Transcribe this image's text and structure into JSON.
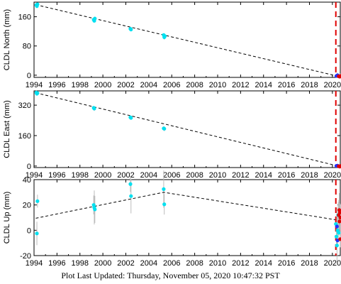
{
  "chart_data": [
    {
      "type": "scatter",
      "ylabel": "CLDL North (mm)",
      "xlim": [
        1994,
        2020.75
      ],
      "ylim": [
        -6,
        200
      ],
      "yticks": [
        0,
        80,
        160
      ],
      "xticks": [
        1994,
        1996,
        1998,
        2000,
        2002,
        2004,
        2006,
        2008,
        2010,
        2012,
        2014,
        2016,
        2018,
        2020
      ],
      "trend": {
        "x": [
          1994.15,
          2020.5
        ],
        "y": [
          193,
          -3
        ]
      },
      "event_line_x": 2020.3,
      "series": [
        {
          "color": "#00e0f0",
          "points": [
            [
              1994.2,
              192
            ],
            [
              1994.25,
              189
            ],
            [
              1994.3,
              194
            ],
            [
              1999.2,
              152
            ],
            [
              1999.25,
              149
            ],
            [
              1999.3,
              155
            ],
            [
              2002.4,
              127
            ],
            [
              2002.45,
              125
            ],
            [
              2005.3,
              110
            ],
            [
              2005.35,
              104
            ],
            [
              2005.4,
              107
            ]
          ]
        },
        {
          "color": "#2233ff",
          "points": [
            [
              2020.35,
              -2
            ],
            [
              2020.45,
              0
            ]
          ]
        },
        {
          "color": "#dd0000",
          "points": [
            [
              2020.55,
              -3
            ],
            [
              2020.65,
              -4
            ],
            [
              2020.7,
              -2
            ]
          ]
        }
      ]
    },
    {
      "type": "scatter",
      "ylabel": "CLDL East (mm)",
      "xlim": [
        1994,
        2020.75
      ],
      "ylim": [
        -8,
        395
      ],
      "yticks": [
        0,
        160,
        320
      ],
      "xticks": [
        1994,
        1996,
        1998,
        2000,
        2002,
        2004,
        2006,
        2008,
        2010,
        2012,
        2014,
        2016,
        2018,
        2020
      ],
      "trend": {
        "x": [
          1994.15,
          2020.5
        ],
        "y": [
          385,
          0
        ]
      },
      "event_line_x": 2020.3,
      "series": [
        {
          "color": "#00e0f0",
          "points": [
            [
              1994.2,
              386
            ],
            [
              1994.25,
              380
            ],
            [
              1994.3,
              383
            ],
            [
              1999.2,
              306
            ],
            [
              1999.25,
              302
            ],
            [
              2002.4,
              256
            ],
            [
              2002.45,
              253
            ],
            [
              2005.3,
              198
            ],
            [
              2005.35,
              196
            ]
          ]
        },
        {
          "color": "#2233ff",
          "points": [
            [
              2020.35,
              1
            ],
            [
              2020.45,
              2
            ]
          ]
        },
        {
          "color": "#dd0000",
          "points": [
            [
              2020.55,
              -1
            ],
            [
              2020.65,
              -3
            ],
            [
              2020.7,
              0
            ]
          ]
        }
      ]
    },
    {
      "type": "scatter",
      "ylabel": "CLDL Up (mm)",
      "xlim": [
        1994,
        2020.75
      ],
      "ylim": [
        -20,
        40
      ],
      "yticks": [
        -20,
        0,
        20,
        40
      ],
      "xticks": [
        1994,
        1996,
        1998,
        2000,
        2002,
        2004,
        2006,
        2008,
        2010,
        2012,
        2014,
        2016,
        2018,
        2020
      ],
      "xticklabels": [
        "1994",
        "1996",
        "1998",
        "2000",
        "2002",
        "2004",
        "2006",
        "2008",
        "2010",
        "2012",
        "2014",
        "2016",
        "2018",
        "2020"
      ],
      "trend": {
        "x": [
          1994.15,
          2005.3,
          2020.5
        ],
        "y": [
          9.5,
          30,
          8
        ]
      },
      "event_line_x": 2020.3,
      "series": [
        {
          "color": "#00e0f0",
          "points": [
            [
              1994.3,
              23
            ],
            [
              1994.25,
              -2.5
            ],
            [
              1999.2,
              20
            ],
            [
              1999.25,
              18
            ],
            [
              1999.3,
              16.5
            ],
            [
              2002.4,
              36.5
            ],
            [
              2002.45,
              27
            ],
            [
              2005.3,
              32.5
            ],
            [
              2005.35,
              20.5
            ],
            [
              2020.3,
              5
            ],
            [
              2020.35,
              -5
            ],
            [
              2020.4,
              -12
            ],
            [
              2020.45,
              0
            ],
            [
              2020.5,
              12
            ],
            [
              2020.55,
              -2
            ]
          ]
        },
        {
          "color": "#2233ff",
          "points": [
            [
              2020.4,
              3
            ],
            [
              2020.45,
              -8
            ]
          ]
        },
        {
          "color": "#dd0000",
          "points": [
            [
              2020.6,
              16
            ],
            [
              2020.65,
              14
            ],
            [
              2020.7,
              10
            ],
            [
              2020.62,
              7
            ],
            [
              2020.68,
              -7
            ],
            [
              2020.55,
              12
            ]
          ]
        }
      ]
    }
  ],
  "footer": "Plot Last Updated:   Thursday, November 05, 2020 10:47:32 PST"
}
